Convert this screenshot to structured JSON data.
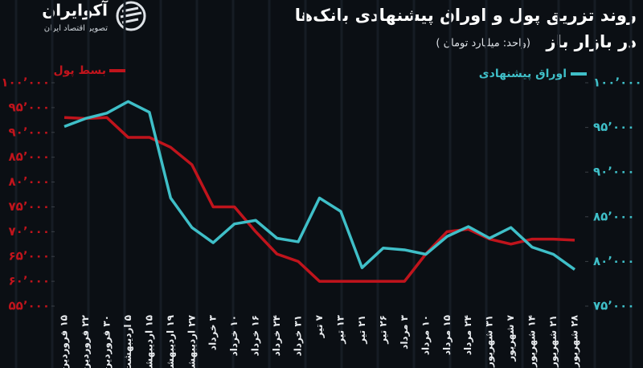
{
  "chart_data": {
    "type": "line",
    "title": [
      "روند تزریق پول و اوراق پیشنهادی بانک‌ها",
      "در بازار باز"
    ],
    "subtitle": "(واحد: میلیارد تومان )",
    "logo": {
      "name": "آکوایران",
      "tagline": "تصویر اقتصاد ایران"
    },
    "categories": [
      "۱۵ فروردین",
      "۲۲ فروردین",
      "۳۰ فروردین",
      "۵ اردیبهشت",
      "۱۵ اردیبهشت",
      "۱۹ اردیبهشت",
      "۲۷ اردیبهشت",
      "۳ خرداد",
      "۱۰ خرداد",
      "۱۶ خرداد",
      "۲۴ خرداد",
      "۳۱ خرداد",
      "۷ تیر",
      "۱۳ تیر",
      "۲۱ تیر",
      "۲۶ تیر",
      "۳ مرداد",
      "۱۰ مرداد",
      "۱۵ مرداد",
      "۲۴ مرداد",
      "۳۱ شهریور",
      "۷ شهریور",
      "۱۴ شهریور",
      "۲۱ شهریور",
      "۲۸ شهریور"
    ],
    "series": [
      {
        "name": "بسط پول",
        "color": "#c0141c",
        "axis": "y",
        "values": [
          93000,
          92800,
          93000,
          89000,
          89000,
          87000,
          83500,
          75000,
          75000,
          70000,
          65500,
          64000,
          60000,
          60000,
          60000,
          60000,
          60000,
          65500,
          70000,
          70500,
          68500,
          67500,
          68500,
          68500,
          68300
        ]
      },
      {
        "name": "اوراق پیشنهادی",
        "color": "#3fbfc8",
        "axis": "y2",
        "values": [
          95100,
          96000,
          96600,
          97900,
          96700,
          87100,
          83800,
          82100,
          84200,
          84600,
          82600,
          82200,
          87100,
          85600,
          79300,
          81500,
          81300,
          80800,
          82800,
          83900,
          82600,
          83800,
          81600,
          80800,
          79100
        ]
      }
    ],
    "ylim": [
      55000,
      100000
    ],
    "yticks": [
      {
        "value": 55000,
        "label": "۵۵٬۰۰۰"
      },
      {
        "value": 60000,
        "label": "۶۰٬۰۰۰"
      },
      {
        "value": 65000,
        "label": "۶۵٬۰۰۰"
      },
      {
        "value": 70000,
        "label": "۷۰٬۰۰۰"
      },
      {
        "value": 75000,
        "label": "۷۵٬۰۰۰"
      },
      {
        "value": 80000,
        "label": "۸۰٬۰۰۰"
      },
      {
        "value": 85000,
        "label": "۸۵٬۰۰۰"
      },
      {
        "value": 90000,
        "label": "۹۰٬۰۰۰"
      },
      {
        "value": 95000,
        "label": "۹۵٬۰۰۰"
      },
      {
        "value": 100000,
        "label": "۱۰۰٬۰۰۰"
      }
    ],
    "y2lim": [
      75000,
      100000
    ],
    "y2ticks": [
      {
        "value": 75000,
        "label": "۷۵٬۰۰۰"
      },
      {
        "value": 80000,
        "label": "۸۰٬۰۰۰"
      },
      {
        "value": 85000,
        "label": "۸۵٬۰۰۰"
      },
      {
        "value": 90000,
        "label": "۹۰٬۰۰۰"
      },
      {
        "value": 95000,
        "label": "۹۵٬۰۰۰"
      },
      {
        "value": 100000,
        "label": "۱۰۰٬۰۰۰"
      }
    ],
    "grid": false
  }
}
